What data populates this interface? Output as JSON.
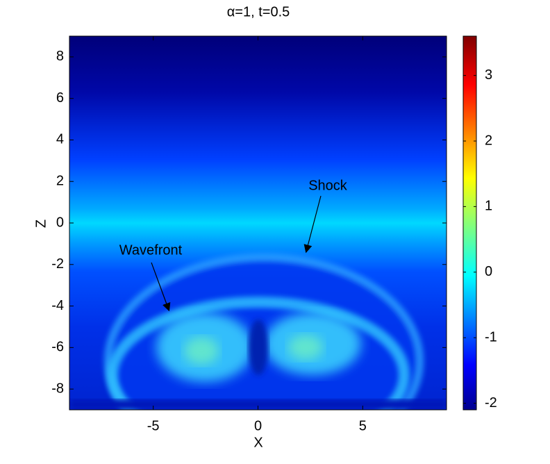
{
  "chart_data": {
    "type": "heatmap",
    "title": "α=1, t=0.5",
    "x_label": "X",
    "y_label": "Z",
    "xlim": [
      -9,
      9
    ],
    "xticks": [
      -5,
      0,
      5
    ],
    "ylim": [
      -9,
      9
    ],
    "yticks": [
      -8,
      -6,
      -4,
      -2,
      0,
      2,
      4,
      6,
      8
    ],
    "clim": [
      -2.1,
      3.6
    ],
    "cticks": [
      -2,
      -1,
      0,
      1,
      2,
      3
    ],
    "annotations": [
      {
        "text": "Shock"
      },
      {
        "text": "Wavefront"
      }
    ]
  }
}
